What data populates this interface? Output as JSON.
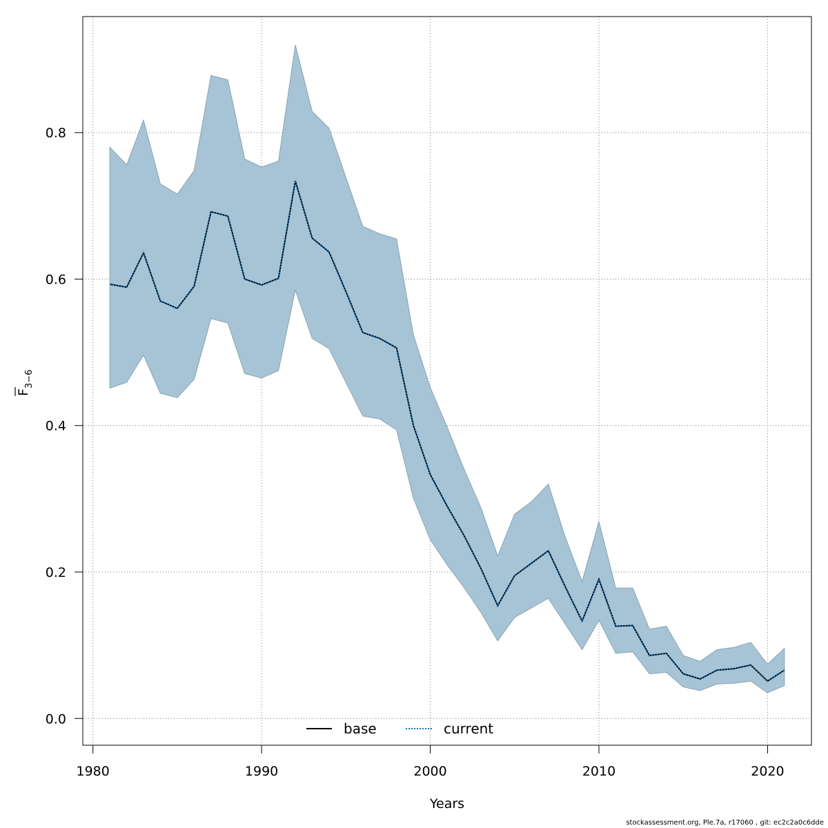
{
  "footer": "stockassessment.org, Ple.7a, r17060 , git: ec2c2a0c6dde",
  "chart_data": {
    "type": "line",
    "xlabel": "Years",
    "ylabel_main": "F",
    "ylabel_sub": "3−6",
    "xlim": [
      1979.4,
      2022.6
    ],
    "ylim": [
      -0.0365,
      0.9585
    ],
    "x_ticks": [
      1980,
      1990,
      2000,
      2010,
      2020
    ],
    "x_tick_labels": [
      "1980",
      "1990",
      "2000",
      "2010",
      "2020"
    ],
    "y_ticks": [
      0.0,
      0.2,
      0.4,
      0.6,
      0.8
    ],
    "y_tick_labels": [
      "0.0",
      "0.2",
      "0.4",
      "0.6",
      "0.8"
    ],
    "grid": true,
    "legend_position": "bottom",
    "colors": {
      "band": "#a6c4d5",
      "band_edge": "#8aa3b0",
      "base": "#000000",
      "current": "#1a6fb3",
      "grid": "#777777"
    },
    "x": [
      1981,
      1982,
      1983,
      1984,
      1985,
      1986,
      1987,
      1988,
      1989,
      1990,
      1991,
      1992,
      1993,
      1994,
      1995,
      1996,
      1997,
      1998,
      1999,
      2000,
      2001,
      2002,
      2003,
      2004,
      2005,
      2006,
      2007,
      2008,
      2009,
      2010,
      2011,
      2012,
      2013,
      2014,
      2015,
      2016,
      2017,
      2018,
      2019,
      2020,
      2021
    ],
    "series": [
      {
        "name": "base",
        "style": "solid",
        "values": [
          0.593,
          0.589,
          0.636,
          0.57,
          0.56,
          0.59,
          0.692,
          0.686,
          0.6,
          0.592,
          0.601,
          0.734,
          0.656,
          0.637,
          0.583,
          0.527,
          0.519,
          0.506,
          0.4,
          0.333,
          0.29,
          0.25,
          0.205,
          0.154,
          0.195,
          0.212,
          0.229,
          0.18,
          0.133,
          0.19,
          0.126,
          0.127,
          0.086,
          0.089,
          0.061,
          0.054,
          0.066,
          0.068,
          0.073,
          0.051,
          0.066
        ]
      },
      {
        "name": "current",
        "style": "dotted",
        "values": [
          0.593,
          0.589,
          0.636,
          0.57,
          0.56,
          0.59,
          0.692,
          0.686,
          0.6,
          0.592,
          0.601,
          0.734,
          0.656,
          0.637,
          0.583,
          0.527,
          0.519,
          0.506,
          0.4,
          0.333,
          0.29,
          0.25,
          0.205,
          0.154,
          0.195,
          0.212,
          0.229,
          0.18,
          0.133,
          0.19,
          0.126,
          0.127,
          0.086,
          0.089,
          0.061,
          0.054,
          0.066,
          0.068,
          0.073,
          0.051,
          0.066
        ]
      }
    ],
    "band_upper": [
      0.78,
      0.756,
      0.817,
      0.73,
      0.716,
      0.748,
      0.878,
      0.872,
      0.764,
      0.753,
      0.761,
      0.92,
      0.829,
      0.806,
      0.739,
      0.672,
      0.662,
      0.655,
      0.524,
      0.452,
      0.398,
      0.341,
      0.288,
      0.222,
      0.279,
      0.296,
      0.32,
      0.248,
      0.187,
      0.269,
      0.178,
      0.178,
      0.122,
      0.126,
      0.086,
      0.078,
      0.094,
      0.097,
      0.104,
      0.074,
      0.096
    ],
    "band_lower": [
      0.451,
      0.459,
      0.496,
      0.444,
      0.438,
      0.463,
      0.546,
      0.54,
      0.471,
      0.465,
      0.475,
      0.585,
      0.519,
      0.505,
      0.459,
      0.413,
      0.409,
      0.394,
      0.301,
      0.244,
      0.21,
      0.179,
      0.145,
      0.106,
      0.138,
      0.151,
      0.164,
      0.129,
      0.094,
      0.134,
      0.089,
      0.091,
      0.061,
      0.063,
      0.043,
      0.038,
      0.047,
      0.048,
      0.051,
      0.035,
      0.045
    ]
  }
}
